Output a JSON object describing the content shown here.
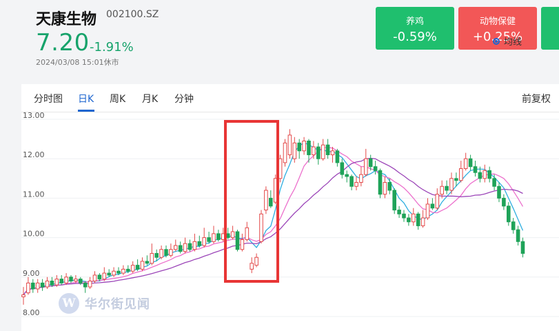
{
  "stock": {
    "name": "天康生物",
    "code": "002100.SZ",
    "price": "7.20",
    "change": "-1.91%",
    "timestamp": "2024/03/08 15:01休市"
  },
  "tiles": [
    {
      "name": "养鸡",
      "value": "-0.59%",
      "color": "#1fbf6e"
    },
    {
      "name": "动物保健",
      "value": "+0.25%",
      "color": "#f25757"
    }
  ],
  "tabs": [
    "分时图",
    "日K",
    "周K",
    "月K",
    "分钟"
  ],
  "active_tab": "日K",
  "restore_label": "前复权",
  "legend_label": "均线",
  "watermark": {
    "logo": "W",
    "text": "华尔街见闻"
  },
  "colors": {
    "up": "#e34848",
    "down": "#1fa359",
    "accent": "#1e66d0",
    "highlight": "#e83535",
    "ma_short": "#2eaee0",
    "ma_mid": "#ec6fcc",
    "ma_long": "#9b45b8"
  },
  "chart_data": {
    "type": "candlestick",
    "y_tick_labels": [
      "13.00",
      "12.00",
      "11.00",
      "10.00",
      "9.00",
      "8.00"
    ],
    "ylim": [
      8.0,
      13.0
    ],
    "candles": [
      {
        "o": 8.5,
        "c": 8.55,
        "h": 8.75,
        "l": 8.3
      },
      {
        "o": 8.6,
        "c": 8.85,
        "h": 9.0,
        "l": 8.55
      },
      {
        "o": 8.85,
        "c": 8.7,
        "h": 8.95,
        "l": 8.6
      },
      {
        "o": 8.7,
        "c": 8.85,
        "h": 8.95,
        "l": 8.6
      },
      {
        "o": 8.85,
        "c": 8.75,
        "h": 8.95,
        "l": 8.65
      },
      {
        "o": 8.75,
        "c": 8.9,
        "h": 9.0,
        "l": 8.7
      },
      {
        "o": 8.9,
        "c": 8.8,
        "h": 9.0,
        "l": 8.75
      },
      {
        "o": 8.8,
        "c": 8.95,
        "h": 9.05,
        "l": 8.75
      },
      {
        "o": 8.95,
        "c": 8.85,
        "h": 9.05,
        "l": 8.8
      },
      {
        "o": 8.85,
        "c": 9.0,
        "h": 9.1,
        "l": 8.8
      },
      {
        "o": 9.0,
        "c": 8.9,
        "h": 9.05,
        "l": 8.85
      },
      {
        "o": 8.9,
        "c": 8.95,
        "h": 9.05,
        "l": 8.85
      },
      {
        "o": 8.95,
        "c": 8.85,
        "h": 9.0,
        "l": 8.8
      },
      {
        "o": 8.85,
        "c": 8.75,
        "h": 8.9,
        "l": 8.6
      },
      {
        "o": 8.75,
        "c": 8.9,
        "h": 9.0,
        "l": 8.7
      },
      {
        "o": 8.9,
        "c": 9.05,
        "h": 9.15,
        "l": 8.85
      },
      {
        "o": 9.05,
        "c": 8.95,
        "h": 9.1,
        "l": 8.9
      },
      {
        "o": 8.95,
        "c": 9.1,
        "h": 9.25,
        "l": 8.9
      },
      {
        "o": 9.1,
        "c": 9.05,
        "h": 9.2,
        "l": 9.0
      },
      {
        "o": 9.05,
        "c": 9.15,
        "h": 9.25,
        "l": 9.0
      },
      {
        "o": 9.15,
        "c": 9.1,
        "h": 9.25,
        "l": 9.05
      },
      {
        "o": 9.1,
        "c": 9.2,
        "h": 9.3,
        "l": 9.05
      },
      {
        "o": 9.2,
        "c": 9.15,
        "h": 9.3,
        "l": 9.1
      },
      {
        "o": 9.15,
        "c": 9.3,
        "h": 9.4,
        "l": 9.1
      },
      {
        "o": 9.3,
        "c": 9.2,
        "h": 9.45,
        "l": 9.15
      },
      {
        "o": 9.2,
        "c": 9.4,
        "h": 9.5,
        "l": 9.15
      },
      {
        "o": 9.4,
        "c": 9.35,
        "h": 9.55,
        "l": 9.3
      },
      {
        "o": 9.35,
        "c": 9.6,
        "h": 9.85,
        "l": 9.3
      },
      {
        "o": 9.6,
        "c": 9.5,
        "h": 9.7,
        "l": 9.4
      },
      {
        "o": 9.5,
        "c": 9.7,
        "h": 9.8,
        "l": 9.45
      },
      {
        "o": 9.7,
        "c": 9.55,
        "h": 9.8,
        "l": 9.5
      },
      {
        "o": 9.55,
        "c": 9.7,
        "h": 9.85,
        "l": 9.5
      },
      {
        "o": 9.7,
        "c": 9.8,
        "h": 9.95,
        "l": 9.65
      },
      {
        "o": 9.8,
        "c": 9.65,
        "h": 9.9,
        "l": 9.6
      },
      {
        "o": 9.65,
        "c": 9.85,
        "h": 10.0,
        "l": 9.6
      },
      {
        "o": 9.85,
        "c": 9.7,
        "h": 9.95,
        "l": 9.65
      },
      {
        "o": 9.7,
        "c": 9.9,
        "h": 10.1,
        "l": 9.65
      },
      {
        "o": 9.9,
        "c": 9.8,
        "h": 10.05,
        "l": 9.75
      },
      {
        "o": 9.8,
        "c": 10.0,
        "h": 10.25,
        "l": 9.75
      },
      {
        "o": 10.0,
        "c": 9.9,
        "h": 10.15,
        "l": 9.85
      },
      {
        "o": 9.9,
        "c": 10.1,
        "h": 10.3,
        "l": 9.85
      },
      {
        "o": 10.1,
        "c": 9.95,
        "h": 10.2,
        "l": 9.9
      },
      {
        "o": 9.95,
        "c": 10.1,
        "h": 10.25,
        "l": 9.9
      },
      {
        "o": 10.1,
        "c": 10.0,
        "h": 10.25,
        "l": 9.95
      },
      {
        "o": 10.0,
        "c": 10.15,
        "h": 10.3,
        "l": 9.95
      },
      {
        "o": 10.15,
        "c": 9.7,
        "h": 10.2,
        "l": 9.65
      },
      {
        "o": 9.7,
        "c": 9.95,
        "h": 10.1,
        "l": 9.65
      },
      {
        "o": 9.95,
        "c": 10.25,
        "h": 10.4,
        "l": 9.9
      },
      {
        "o": 9.2,
        "c": 9.35,
        "h": 9.5,
        "l": 9.1
      },
      {
        "o": 9.3,
        "c": 9.5,
        "h": 9.6,
        "l": 9.25
      },
      {
        "o": 9.9,
        "c": 10.6,
        "h": 10.7,
        "l": 9.85
      },
      {
        "o": 10.7,
        "c": 11.2,
        "h": 11.3,
        "l": 10.6
      },
      {
        "o": 11.0,
        "c": 10.8,
        "h": 11.2,
        "l": 10.75
      },
      {
        "o": 10.9,
        "c": 11.5,
        "h": 11.6,
        "l": 10.85
      },
      {
        "o": 11.5,
        "c": 12.0,
        "h": 12.1,
        "l": 11.4
      },
      {
        "o": 11.9,
        "c": 12.4,
        "h": 12.5,
        "l": 11.8
      },
      {
        "o": 12.1,
        "c": 12.6,
        "h": 12.75,
        "l": 12.0
      },
      {
        "o": 12.0,
        "c": 12.4,
        "h": 12.55,
        "l": 11.9
      },
      {
        "o": 12.4,
        "c": 12.2,
        "h": 12.5,
        "l": 12.0
      },
      {
        "o": 12.2,
        "c": 12.45,
        "h": 12.55,
        "l": 12.1
      },
      {
        "o": 12.45,
        "c": 12.1,
        "h": 12.5,
        "l": 11.9
      },
      {
        "o": 12.1,
        "c": 12.3,
        "h": 12.45,
        "l": 12.0
      },
      {
        "o": 12.3,
        "c": 12.0,
        "h": 12.4,
        "l": 11.85
      },
      {
        "o": 12.0,
        "c": 12.35,
        "h": 12.5,
        "l": 11.95
      },
      {
        "o": 12.35,
        "c": 12.1,
        "h": 12.5,
        "l": 12.0
      },
      {
        "o": 12.1,
        "c": 12.2,
        "h": 12.3,
        "l": 11.9
      },
      {
        "o": 12.2,
        "c": 11.9,
        "h": 12.25,
        "l": 11.8
      },
      {
        "o": 11.9,
        "c": 11.6,
        "h": 12.0,
        "l": 11.5
      },
      {
        "o": 11.6,
        "c": 11.55,
        "h": 11.7,
        "l": 11.4
      },
      {
        "o": 11.55,
        "c": 11.3,
        "h": 11.6,
        "l": 11.2
      },
      {
        "o": 11.3,
        "c": 11.4,
        "h": 11.55,
        "l": 11.2
      },
      {
        "o": 11.4,
        "c": 11.6,
        "h": 11.8,
        "l": 11.3
      },
      {
        "o": 11.6,
        "c": 12.0,
        "h": 12.25,
        "l": 11.55
      },
      {
        "o": 12.0,
        "c": 11.8,
        "h": 12.1,
        "l": 11.7
      },
      {
        "o": 11.8,
        "c": 11.7,
        "h": 11.95,
        "l": 11.6
      },
      {
        "o": 11.7,
        "c": 11.1,
        "h": 11.75,
        "l": 11.0
      },
      {
        "o": 11.1,
        "c": 11.4,
        "h": 11.55,
        "l": 11.0
      },
      {
        "o": 11.4,
        "c": 11.2,
        "h": 11.5,
        "l": 11.1
      },
      {
        "o": 11.2,
        "c": 10.7,
        "h": 11.25,
        "l": 10.6
      },
      {
        "o": 10.7,
        "c": 10.6,
        "h": 10.8,
        "l": 10.5
      },
      {
        "o": 10.6,
        "c": 10.5,
        "h": 10.7,
        "l": 10.4
      },
      {
        "o": 10.5,
        "c": 10.4,
        "h": 10.6,
        "l": 10.3
      },
      {
        "o": 10.4,
        "c": 10.6,
        "h": 10.75,
        "l": 10.3
      },
      {
        "o": 10.6,
        "c": 10.3,
        "h": 10.65,
        "l": 10.2
      },
      {
        "o": 10.3,
        "c": 10.5,
        "h": 10.7,
        "l": 10.25
      },
      {
        "o": 10.5,
        "c": 10.85,
        "h": 11.0,
        "l": 10.45
      },
      {
        "o": 10.85,
        "c": 10.75,
        "h": 11.0,
        "l": 10.7
      },
      {
        "o": 10.75,
        "c": 11.1,
        "h": 11.25,
        "l": 10.7
      },
      {
        "o": 11.1,
        "c": 11.3,
        "h": 11.45,
        "l": 11.0
      },
      {
        "o": 11.3,
        "c": 11.2,
        "h": 11.45,
        "l": 11.1
      },
      {
        "o": 11.2,
        "c": 11.5,
        "h": 11.65,
        "l": 11.1
      },
      {
        "o": 11.5,
        "c": 11.45,
        "h": 11.65,
        "l": 11.3
      },
      {
        "o": 11.45,
        "c": 11.75,
        "h": 11.95,
        "l": 11.4
      },
      {
        "o": 11.75,
        "c": 12.0,
        "h": 12.15,
        "l": 11.7
      },
      {
        "o": 12.0,
        "c": 11.8,
        "h": 12.1,
        "l": 11.7
      },
      {
        "o": 11.8,
        "c": 11.65,
        "h": 11.95,
        "l": 11.55
      },
      {
        "o": 11.65,
        "c": 11.5,
        "h": 11.8,
        "l": 11.4
      },
      {
        "o": 11.5,
        "c": 11.7,
        "h": 11.85,
        "l": 11.4
      },
      {
        "o": 11.7,
        "c": 11.5,
        "h": 11.8,
        "l": 11.4
      },
      {
        "o": 11.5,
        "c": 11.3,
        "h": 11.6,
        "l": 11.2
      },
      {
        "o": 11.3,
        "c": 11.0,
        "h": 11.4,
        "l": 10.9
      },
      {
        "o": 11.0,
        "c": 10.8,
        "h": 11.1,
        "l": 10.7
      },
      {
        "o": 10.8,
        "c": 10.4,
        "h": 10.9,
        "l": 10.3
      },
      {
        "o": 10.4,
        "c": 10.2,
        "h": 10.5,
        "l": 10.1
      },
      {
        "o": 10.2,
        "c": 9.9,
        "h": 10.3,
        "l": 9.8
      },
      {
        "o": 9.9,
        "c": 9.6,
        "h": 10.0,
        "l": 9.5
      }
    ]
  }
}
